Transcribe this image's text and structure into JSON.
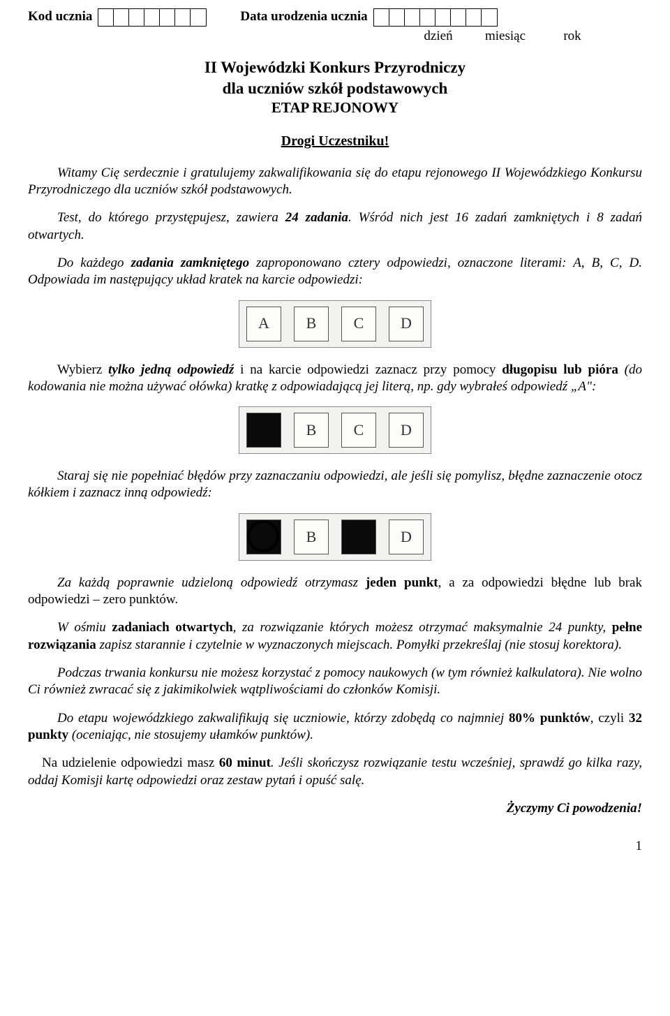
{
  "header": {
    "code_label": "Kod ucznia",
    "code_cells": 7,
    "dob_label": "Data urodzenia ucznia",
    "dob_cells": 8,
    "sub_day": "dzień",
    "sub_month": "miesiąc",
    "sub_year": "rok"
  },
  "title": {
    "line1": "II Wojewódzki Konkurs Przyrodniczy",
    "line2": "dla uczniów szkół podstawowych",
    "line3": "ETAP REJONOWY"
  },
  "greeting": "Drogi Uczestniku!",
  "para1_a": "Witamy Cię serdecznie i gratulujemy zakwalifikowania się do etapu rejonowego II Wojewódzkiego Konkursu Przyrodniczego dla uczniów szkół podstawowych.",
  "para2_a": "Test, do którego przystępujesz, zawiera ",
  "para2_b": "24 zadania",
  "para2_c": ". Wśród nich jest 16 zadań zamkniętych i 8 zadań otwartych.",
  "para3_a": "Do każdego ",
  "para3_b": "zadania zamkniętego",
  "para3_c": " zaproponowano cztery odpowiedzi, oznaczone literami: A, B, C, D. Odpowiada im następujący układ kratek na karcie odpowiedzi:",
  "fig1": {
    "boxes": [
      "A",
      "B",
      "C",
      "D"
    ],
    "filled": [],
    "circled": []
  },
  "para4_a": "Wybierz ",
  "para4_b": "tylko jedną odpowiedź",
  "para4_c": " i na karcie odpowiedzi zaznacz przy pomocy ",
  "para4_d": "długopisu lub pióra",
  "para4_e": " (do kodowania nie można używać ołówka) kratkę z odpowiadającą jej literą, np. gdy wybrałeś odpowiedź „A\":",
  "fig2": {
    "boxes": [
      "",
      "B",
      "C",
      "D"
    ],
    "filled": [
      0
    ],
    "circled": []
  },
  "para5": "Staraj się nie popełniać błędów przy zaznaczaniu odpowiedzi, ale jeśli się pomylisz, błędne zaznaczenie otocz kółkiem i zaznacz inną odpowiedź:",
  "fig3": {
    "boxes": [
      "",
      "B",
      "",
      "D"
    ],
    "filled": [
      0,
      2
    ],
    "circled": [
      0
    ]
  },
  "para6_a": "Za każdą poprawnie udzieloną odpowiedź otrzymasz ",
  "para6_b": "jeden punkt",
  "para6_c": ", a za odpowiedzi błędne lub brak odpowiedzi – zero punktów.",
  "para7_a": "W ośmiu ",
  "para7_b": "zadaniach otwartych",
  "para7_c": ", za rozwiązanie których możesz otrzymać maksymalnie 24 punkty, ",
  "para7_d": "pełne rozwiązania",
  "para7_e": " zapisz starannie i czytelnie w wyznaczonych miejscach. Pomyłki przekreślaj (nie stosuj korektora).",
  "para8": "Podczas trwania konkursu nie możesz korzystać z pomocy naukowych (w tym również kalkulatora). Nie wolno Ci również zwracać się z jakimikolwiek wątpliwościami do członków Komisji.",
  "para9_a": "Do etapu wojewódzkiego zakwalifikują się uczniowie, którzy zdobędą co najmniej ",
  "para9_b": "80% punktów",
  "para9_c": ", czyli ",
  "para9_d": "32 punkty",
  "para9_e": " (oceniając, nie stosujemy ułamków punktów).",
  "para10_a": "Na udzielenie odpowiedzi masz ",
  "para10_b": "60 minut",
  "para10_c": ". Jeśli skończysz rozwiązanie testu wcześniej, sprawdź go kilka razy, oddaj Komisji kartę odpowiedzi oraz zestaw pytań i opuść salę.",
  "closing": "Życzymy Ci powodzenia!",
  "page_number": "1"
}
